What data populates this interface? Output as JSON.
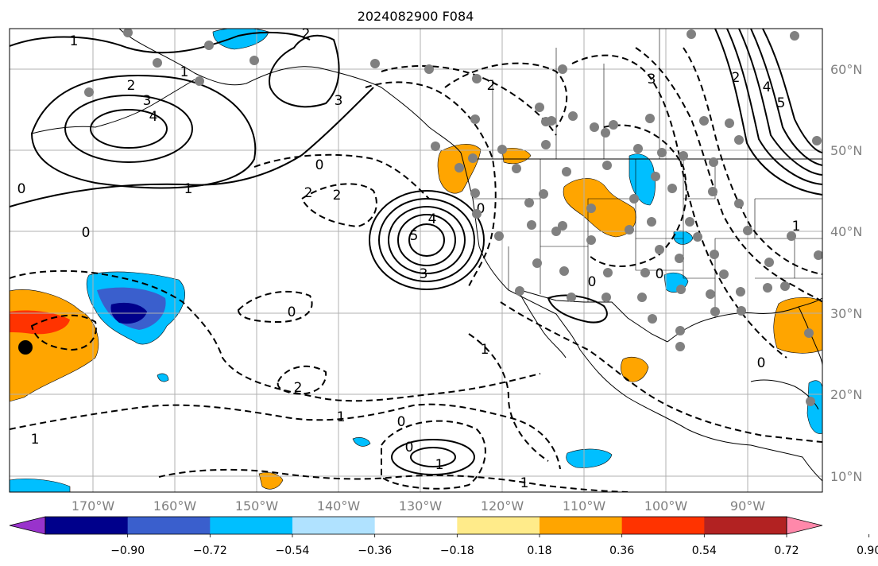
{
  "title": "2024082900 F084",
  "axes": {
    "lon_ticks": [
      "170°W",
      "160°W",
      "150°W",
      "140°W",
      "130°W",
      "120°W",
      "110°W",
      "100°W",
      "90°W"
    ],
    "lat_ticks": [
      "60°N",
      "50°N",
      "40°N",
      "30°N",
      "20°N",
      "10°N"
    ],
    "grid": true
  },
  "colorbar": {
    "tick_labels": [
      "−0.90",
      "−0.72",
      "−0.54",
      "−0.36",
      "−0.18",
      "0.18",
      "0.36",
      "0.54",
      "0.72",
      "0.90"
    ],
    "colors": [
      "#9933cc",
      "#00008b",
      "#3a5fcd",
      "#00bfff",
      "#b0e2ff",
      "#ffffff",
      "#ffeb8a",
      "#ffa500",
      "#ff3300",
      "#b22222",
      "#ff88aa"
    ]
  },
  "contour_labels": [
    "1",
    "2",
    "3",
    "4",
    "0",
    "1",
    "2",
    "0",
    "2",
    "3",
    "4",
    "5",
    "3",
    "0",
    "0",
    "2",
    "1",
    "0",
    "1",
    "1",
    "1",
    "0",
    "3",
    "4",
    "5",
    "2",
    "0",
    "1",
    "0",
    "2",
    "1",
    "2",
    "1",
    "0",
    "0"
  ],
  "colors": {
    "land_outline": "#000000",
    "grid": "#b0b0b0",
    "station_dot": "#808080"
  }
}
